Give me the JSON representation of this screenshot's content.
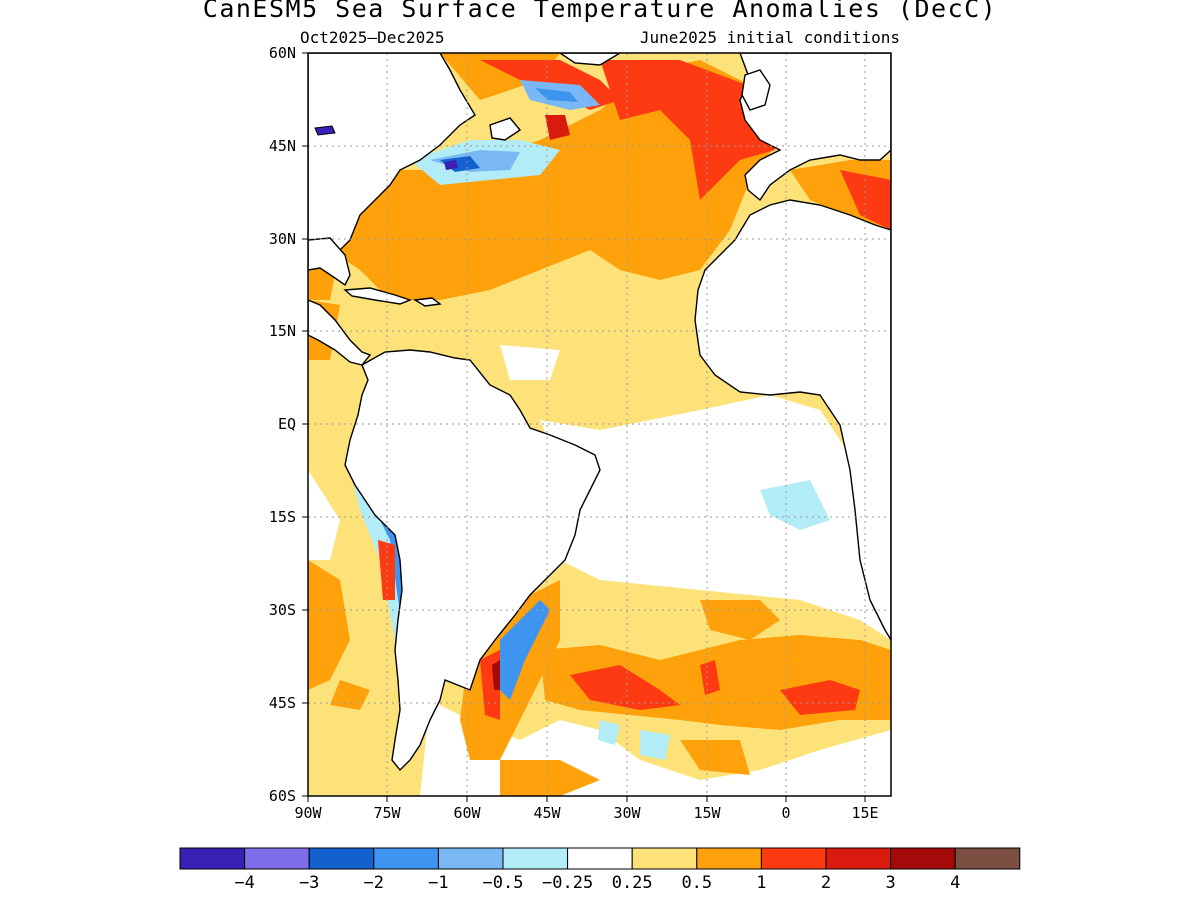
{
  "title": "CanESM5 Sea Surface Temperature Anomalies (DecC)",
  "subtitle_left": "Oct2025—Dec2025",
  "subtitle_right": "June2025 initial conditions",
  "lat_ticks": [
    "60N",
    "45N",
    "30N",
    "15N",
    "EQ",
    "15S",
    "30S",
    "45S",
    "60S"
  ],
  "lon_ticks": [
    "90W",
    "75W",
    "60W",
    "45W",
    "30W",
    "15W",
    "0",
    "15E"
  ],
  "colorbar": {
    "colors": [
      "#3a1fb5",
      "#7d6de8",
      "#1560cf",
      "#3d95ef",
      "#79b8f5",
      "#b2ecf7",
      "#ffffff",
      "#fde27a",
      "#fea10a",
      "#fd3a12",
      "#db1a0f",
      "#a30a09",
      "#7b5043"
    ],
    "labels": [
      "−4",
      "−3",
      "−2",
      "−1",
      "−0.5",
      "−0.25",
      "0.25",
      "0.5",
      "1",
      "2",
      "3",
      "4"
    ]
  }
}
